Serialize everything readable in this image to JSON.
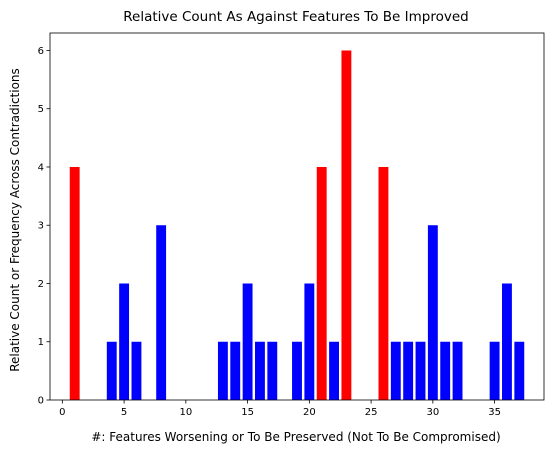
{
  "chart_data": {
    "type": "bar",
    "title": "Relative Count As Against Features To Be Improved",
    "xlabel": "#: Features Worsening or To Be Preserved (Not To Be Compromised)",
    "ylabel": "Relative Count or Frequency Across Contradictions",
    "xlim": [
      -1,
      39
    ],
    "ylim": [
      0,
      6.3
    ],
    "xticks": [
      0,
      5,
      10,
      15,
      20,
      25,
      30,
      35
    ],
    "yticks": [
      0,
      1,
      2,
      3,
      4,
      5,
      6
    ],
    "grid": false,
    "colors": {
      "highlight": "#ff0000",
      "normal": "#0000ff"
    },
    "bars": [
      {
        "x": 1,
        "value": 4,
        "color": "red"
      },
      {
        "x": 4,
        "value": 1,
        "color": "blue"
      },
      {
        "x": 5,
        "value": 2,
        "color": "blue"
      },
      {
        "x": 6,
        "value": 1,
        "color": "blue"
      },
      {
        "x": 8,
        "value": 3,
        "color": "blue"
      },
      {
        "x": 13,
        "value": 1,
        "color": "blue"
      },
      {
        "x": 14,
        "value": 1,
        "color": "blue"
      },
      {
        "x": 15,
        "value": 2,
        "color": "blue"
      },
      {
        "x": 16,
        "value": 1,
        "color": "blue"
      },
      {
        "x": 17,
        "value": 1,
        "color": "blue"
      },
      {
        "x": 19,
        "value": 1,
        "color": "blue"
      },
      {
        "x": 20,
        "value": 2,
        "color": "blue"
      },
      {
        "x": 21,
        "value": 4,
        "color": "red"
      },
      {
        "x": 22,
        "value": 1,
        "color": "blue"
      },
      {
        "x": 23,
        "value": 6,
        "color": "red"
      },
      {
        "x": 26,
        "value": 4,
        "color": "red"
      },
      {
        "x": 27,
        "value": 1,
        "color": "blue"
      },
      {
        "x": 28,
        "value": 1,
        "color": "blue"
      },
      {
        "x": 29,
        "value": 1,
        "color": "blue"
      },
      {
        "x": 30,
        "value": 3,
        "color": "blue"
      },
      {
        "x": 31,
        "value": 1,
        "color": "blue"
      },
      {
        "x": 32,
        "value": 1,
        "color": "blue"
      },
      {
        "x": 35,
        "value": 1,
        "color": "blue"
      },
      {
        "x": 36,
        "value": 2,
        "color": "blue"
      },
      {
        "x": 37,
        "value": 1,
        "color": "blue"
      }
    ]
  }
}
